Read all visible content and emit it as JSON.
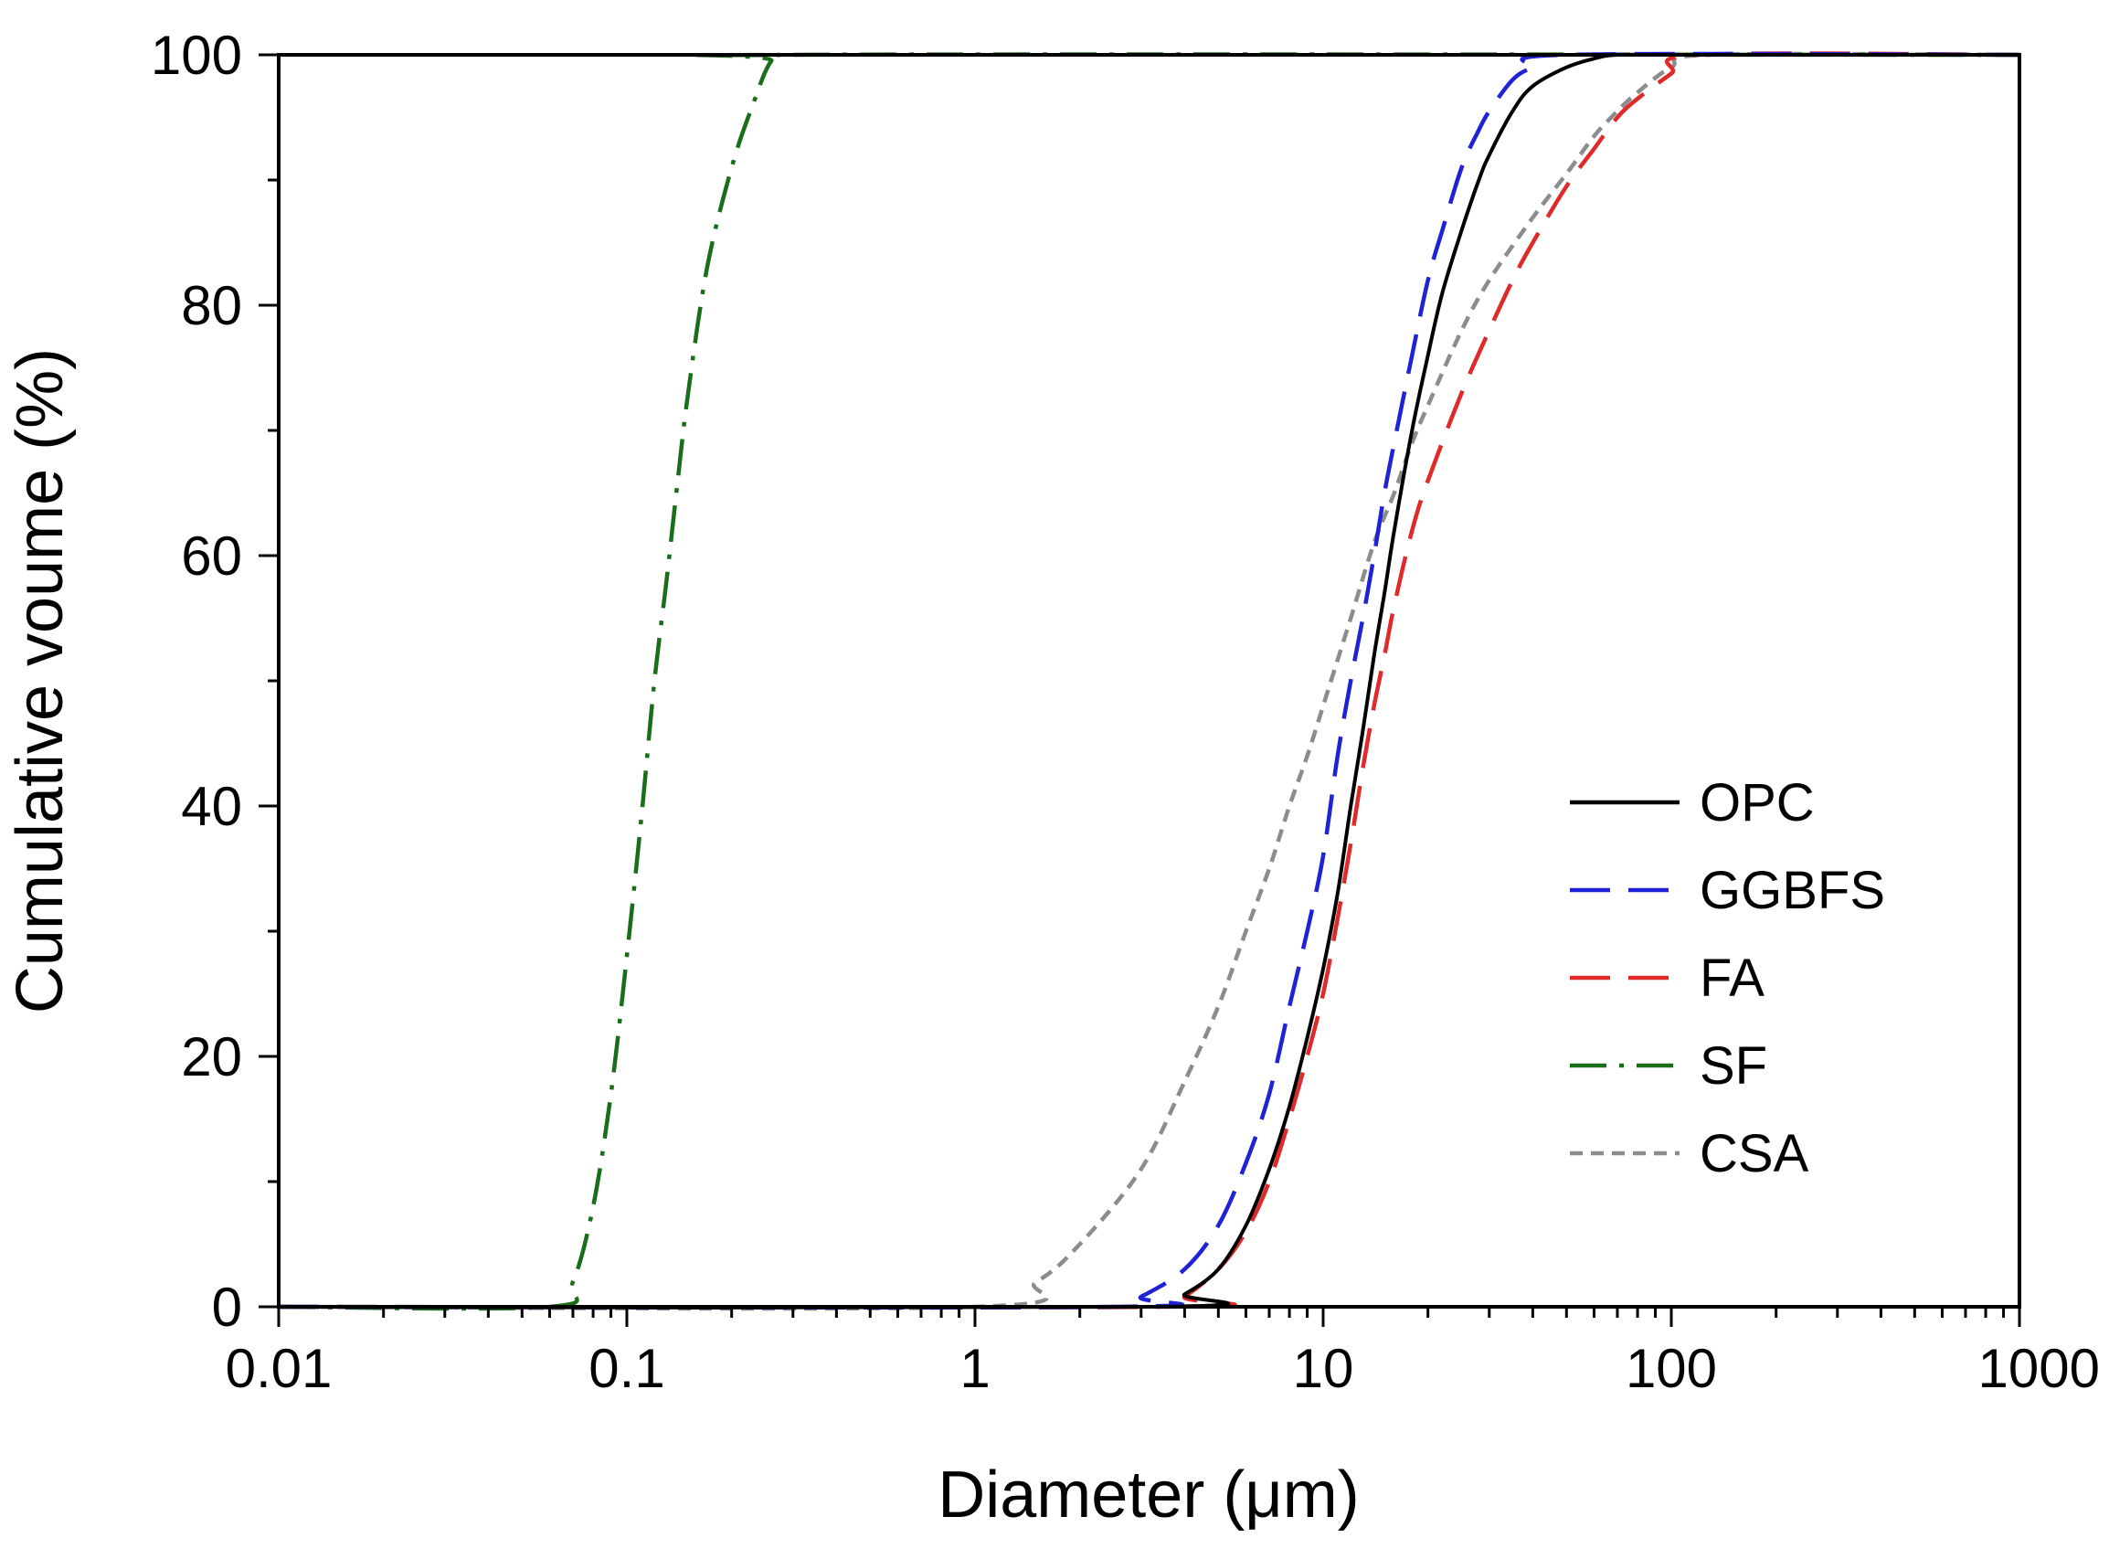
{
  "chart_data": {
    "type": "line",
    "title": "",
    "xlabel": "Diameter (μm)",
    "ylabel": "Cumulative voume (%)",
    "xscale": "log",
    "xlim": [
      0.01,
      1000
    ],
    "ylim": [
      0,
      100
    ],
    "x_ticks": [
      0.01,
      0.1,
      1,
      10,
      100,
      1000
    ],
    "x_tick_labels": [
      "0.01",
      "0.1",
      "1",
      "10",
      "100",
      "1000"
    ],
    "y_ticks": [
      0,
      20,
      40,
      60,
      80,
      100
    ],
    "y_tick_labels": [
      "0",
      "20",
      "40",
      "60",
      "80",
      "100"
    ],
    "grid": false,
    "legend_position": "center-right",
    "series": [
      {
        "name": "OPC",
        "color": "#000000",
        "style": "solid",
        "x": [
          0.01,
          3.3,
          4,
          5,
          6,
          7,
          8,
          9,
          10,
          11,
          12,
          13,
          14,
          15,
          16,
          18,
          20,
          22,
          25,
          28,
          30,
          35,
          40,
          50,
          60,
          70,
          100,
          1000
        ],
        "y": [
          0,
          0,
          1,
          3,
          6.5,
          11,
          16,
          21.5,
          27,
          33,
          40,
          46,
          52,
          57,
          62,
          70,
          76,
          81,
          86,
          90,
          92,
          95.5,
          97.5,
          99,
          99.7,
          100,
          100,
          100
        ]
      },
      {
        "name": "GGBFS",
        "color": "#1f22d6",
        "style": "dashed",
        "x": [
          0.01,
          2.5,
          3,
          4,
          5,
          6,
          7,
          8,
          9,
          10,
          11,
          12,
          13,
          14,
          15,
          16,
          18,
          20,
          22,
          25,
          28,
          30,
          35,
          40,
          50,
          1000
        ],
        "y": [
          0,
          0,
          0.8,
          3,
          6.5,
          11.5,
          17,
          24,
          30,
          36,
          44,
          50,
          55,
          60,
          65,
          69,
          76,
          82,
          86,
          91,
          94,
          95.5,
          98,
          99,
          100,
          100
        ]
      },
      {
        "name": "FA",
        "color": "#e02a2a",
        "style": "dashed",
        "x": [
          0.01,
          3.5,
          4,
          5,
          6,
          7,
          8,
          9,
          10,
          11,
          12,
          13,
          14,
          15,
          16,
          18,
          20,
          25,
          30,
          35,
          40,
          50,
          60,
          70,
          80,
          100,
          120,
          1000
        ],
        "y": [
          0,
          0,
          0.8,
          3,
          6,
          10,
          15,
          20,
          25,
          31,
          37,
          43,
          48,
          52,
          56,
          62,
          66,
          73,
          78,
          82,
          85,
          89.5,
          92.5,
          95,
          96.5,
          98.5,
          100,
          100
        ]
      },
      {
        "name": "SF",
        "color": "#1a6e1a",
        "style": "dashdot",
        "x": [
          0.01,
          0.06,
          0.07,
          0.08,
          0.09,
          0.1,
          0.11,
          0.12,
          0.13,
          0.14,
          0.15,
          0.17,
          0.2,
          0.23,
          0.26,
          0.3,
          1000
        ],
        "y": [
          0,
          0,
          2,
          8,
          17,
          28,
          39,
          50,
          58,
          66,
          73,
          83,
          91,
          96,
          99.5,
          100,
          100
        ]
      },
      {
        "name": "CSA",
        "color": "#8c8c8c",
        "style": "dotted",
        "x": [
          0.01,
          1,
          1.5,
          2,
          3,
          4,
          5,
          6,
          7,
          8,
          9,
          10,
          12,
          14,
          16,
          18,
          20,
          25,
          30,
          40,
          50,
          60,
          70,
          80,
          100,
          130,
          1000
        ],
        "y": [
          0,
          0,
          2,
          5,
          11,
          18,
          24,
          30,
          35,
          40,
          44,
          48,
          55,
          61,
          65,
          69,
          72,
          78,
          82,
          87,
          90.5,
          93.5,
          95.5,
          97,
          99,
          100,
          100
        ]
      }
    ]
  }
}
